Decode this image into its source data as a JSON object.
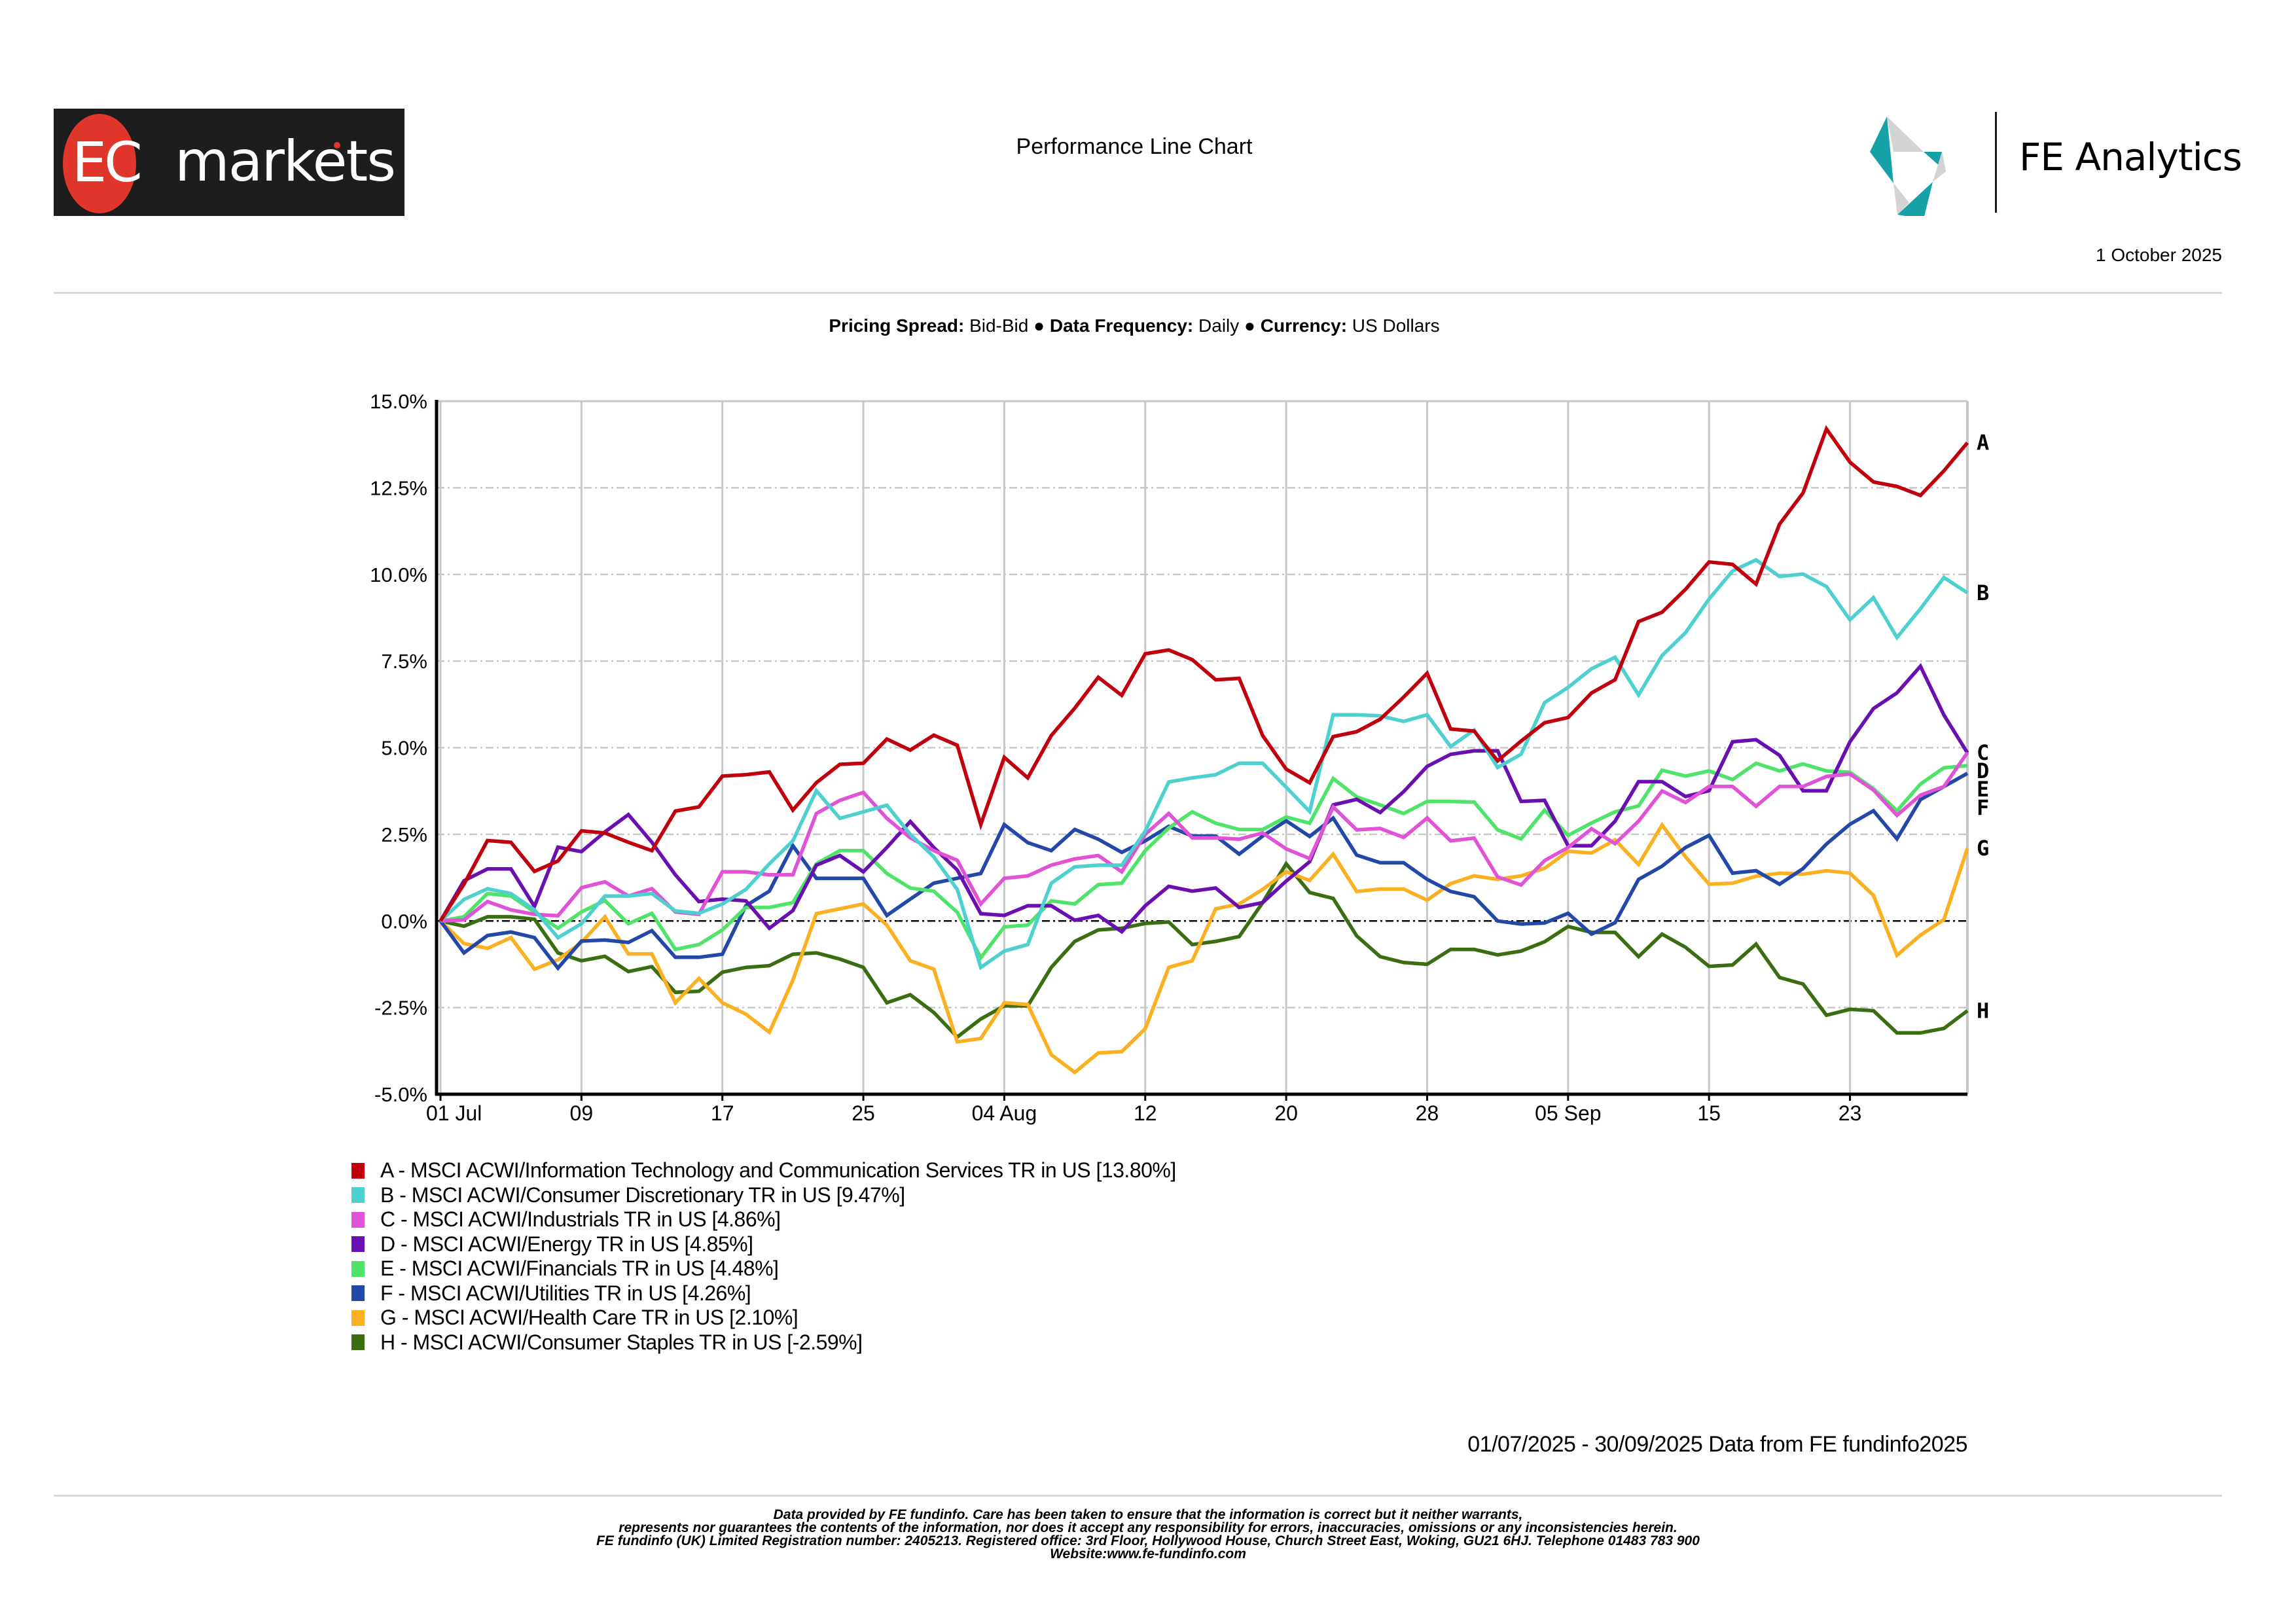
{
  "header": {
    "brand_left": {
      "ec": "EC",
      "markets": "markets"
    },
    "title": "Performance Line Chart",
    "brand_right": "FE Analytics",
    "report_date": "1 October 2025",
    "colors": {
      "ec_red": "#e0352b",
      "ec_bg": "#1d1d1d",
      "fe_teal": "#16a0a8",
      "fe_grey": "#d3d3d3"
    }
  },
  "subtitle": {
    "pricing_spread_label": "Pricing Spread:",
    "pricing_spread_value": " Bid-Bid ",
    "sep1": "● ",
    "data_frequency_label": "Data Frequency:",
    "data_frequency_value": " Daily ",
    "sep2": "● ",
    "currency_label": "Currency:",
    "currency_value": " US Dollars"
  },
  "chart_data": {
    "type": "line",
    "title": "Performance Line Chart",
    "xlabel": "",
    "ylabel": "",
    "ylim": [
      -5.0,
      15.0
    ],
    "y_ticks": [
      -5.0,
      -2.5,
      0.0,
      2.5,
      5.0,
      7.5,
      10.0,
      12.5,
      15.0
    ],
    "y_tick_labels": [
      "-5.0%",
      "-2.5%",
      "0.0%",
      "2.5%",
      "5.0%",
      "7.5%",
      "10.0%",
      "12.5%",
      "15.0%"
    ],
    "x_tick_labels": [
      "01 Jul",
      "09",
      "17",
      "25",
      "04 Aug",
      "12",
      "20",
      "28",
      "05 Sep",
      "15",
      "23"
    ],
    "x_tick_every_n_points": 6,
    "grid": true,
    "zero_line": true,
    "legend_position": "bottom-left",
    "x": [
      "2025-07-01",
      "2025-07-02",
      "2025-07-03",
      "2025-07-04",
      "2025-07-07",
      "2025-07-08",
      "2025-07-09",
      "2025-07-10",
      "2025-07-11",
      "2025-07-14",
      "2025-07-15",
      "2025-07-16",
      "2025-07-17",
      "2025-07-18",
      "2025-07-21",
      "2025-07-22",
      "2025-07-23",
      "2025-07-24",
      "2025-07-25",
      "2025-07-28",
      "2025-07-29",
      "2025-07-30",
      "2025-07-31",
      "2025-08-01",
      "2025-08-04",
      "2025-08-05",
      "2025-08-06",
      "2025-08-07",
      "2025-08-08",
      "2025-08-11",
      "2025-08-12",
      "2025-08-13",
      "2025-08-14",
      "2025-08-15",
      "2025-08-18",
      "2025-08-19",
      "2025-08-20",
      "2025-08-21",
      "2025-08-22",
      "2025-08-25",
      "2025-08-26",
      "2025-08-27",
      "2025-08-28",
      "2025-08-29",
      "2025-09-01",
      "2025-09-02",
      "2025-09-03",
      "2025-09-04",
      "2025-09-05",
      "2025-09-08",
      "2025-09-09",
      "2025-09-10",
      "2025-09-11",
      "2025-09-12",
      "2025-09-15",
      "2025-09-16",
      "2025-09-17",
      "2025-09-18",
      "2025-09-19",
      "2025-09-22",
      "2025-09-23",
      "2025-09-24",
      "2025-09-25",
      "2025-09-26",
      "2025-09-29",
      "2025-09-30"
    ],
    "series": [
      {
        "key": "A",
        "name": "A - MSCI ACWI/Information Technology and Communication Services TR in US [13.80%]",
        "color": "#c0000c",
        "final": 13.8,
        "values": [
          0,
          1.06,
          2.32,
          2.27,
          1.43,
          1.73,
          2.6,
          2.54,
          2.27,
          2.03,
          3.17,
          3.29,
          4.18,
          4.22,
          4.3,
          3.2,
          3.99,
          4.52,
          4.55,
          5.25,
          4.93,
          5.36,
          5.07,
          2.78,
          4.72,
          4.13,
          5.35,
          6.14,
          7.03,
          6.51,
          7.71,
          7.82,
          7.54,
          6.96,
          7.0,
          5.35,
          4.38,
          3.99,
          5.32,
          5.46,
          5.82,
          6.46,
          7.15,
          5.54,
          5.48,
          4.62,
          5.19,
          5.72,
          5.87,
          6.58,
          6.96,
          8.64,
          8.91,
          9.57,
          10.36,
          10.29,
          9.72,
          11.45,
          12.35,
          14.2,
          13.24,
          12.67,
          12.54,
          12.28,
          12.99,
          13.8
        ]
      },
      {
        "key": "B",
        "name": "B - MSCI ACWI/Consumer Discretionary TR in US [9.47%]",
        "color": "#4ecfd0",
        "final": 9.47,
        "values": [
          0,
          0.62,
          0.93,
          0.79,
          0.32,
          -0.48,
          -0.08,
          0.72,
          0.72,
          0.79,
          0.29,
          0.22,
          0.49,
          0.91,
          1.65,
          2.31,
          3.76,
          2.96,
          3.15,
          3.34,
          2.5,
          1.85,
          0.91,
          -1.34,
          -0.87,
          -0.68,
          1.09,
          1.56,
          1.61,
          1.61,
          2.59,
          4.01,
          4.13,
          4.22,
          4.55,
          4.55,
          3.86,
          3.16,
          5.95,
          5.95,
          5.92,
          5.76,
          5.95,
          5.03,
          5.51,
          4.43,
          4.81,
          6.3,
          6.74,
          7.28,
          7.61,
          6.52,
          7.66,
          8.32,
          9.29,
          10.1,
          10.42,
          9.94,
          10.01,
          9.65,
          8.69,
          9.33,
          8.18,
          9.01,
          9.91,
          9.47
        ]
      },
      {
        "key": "C",
        "name": "C - MSCI ACWI/Industrials TR in US [4.86%]",
        "color": "#e052d6",
        "final": 4.86,
        "values": [
          0,
          0.03,
          0.56,
          0.32,
          0.19,
          0.15,
          0.96,
          1.13,
          0.72,
          0.93,
          0.26,
          0.19,
          1.42,
          1.42,
          1.33,
          1.33,
          3.1,
          3.48,
          3.71,
          2.96,
          2.4,
          2.03,
          1.75,
          0.49,
          1.23,
          1.3,
          1.61,
          1.79,
          1.89,
          1.42,
          2.5,
          3.1,
          2.4,
          2.4,
          2.36,
          2.54,
          2.08,
          1.8,
          3.29,
          2.63,
          2.67,
          2.41,
          2.97,
          2.31,
          2.39,
          1.27,
          1.04,
          1.74,
          2.12,
          2.66,
          2.23,
          2.88,
          3.75,
          3.42,
          3.88,
          3.88,
          3.31,
          3.88,
          3.88,
          4.17,
          4.24,
          3.78,
          3.05,
          3.63,
          3.88,
          4.86
        ]
      },
      {
        "key": "D",
        "name": "D - MSCI ACWI/Energy TR in US [4.85%]",
        "color": "#6a0fb0",
        "final": 4.85,
        "values": [
          0,
          1.16,
          1.5,
          1.5,
          0.42,
          2.13,
          2.0,
          2.57,
          3.07,
          2.27,
          1.33,
          0.56,
          0.63,
          0.58,
          -0.21,
          0.3,
          1.61,
          1.89,
          1.42,
          2.12,
          2.87,
          2.12,
          1.47,
          0.21,
          0.16,
          0.44,
          0.44,
          0.02,
          0.16,
          -0.31,
          0.44,
          1.0,
          0.86,
          0.95,
          0.39,
          0.53,
          1.15,
          1.71,
          3.35,
          3.51,
          3.13,
          3.73,
          4.46,
          4.81,
          4.91,
          4.91,
          3.45,
          3.48,
          2.17,
          2.17,
          2.88,
          4.02,
          4.02,
          3.59,
          3.76,
          5.17,
          5.23,
          4.78,
          3.76,
          3.76,
          5.17,
          6.13,
          6.58,
          7.35,
          5.94,
          4.85
        ]
      },
      {
        "key": "E",
        "name": "E - MSCI ACWI/Financials TR in US [4.48%]",
        "color": "#4fe36a",
        "final": 4.48,
        "values": [
          0,
          0.12,
          0.79,
          0.72,
          0.26,
          -0.21,
          0.26,
          0.59,
          -0.08,
          0.22,
          -0.82,
          -0.68,
          -0.26,
          0.39,
          0.39,
          0.53,
          1.65,
          2.03,
          2.03,
          1.37,
          0.95,
          0.86,
          0.25,
          -1.06,
          -0.17,
          -0.12,
          0.58,
          0.49,
          1.05,
          1.09,
          2.03,
          2.68,
          3.15,
          2.82,
          2.64,
          2.64,
          3.0,
          2.82,
          4.11,
          3.58,
          3.35,
          3.1,
          3.45,
          3.45,
          3.43,
          2.63,
          2.37,
          3.2,
          2.47,
          2.83,
          3.15,
          3.32,
          4.35,
          4.18,
          4.33,
          4.08,
          4.55,
          4.33,
          4.53,
          4.33,
          4.29,
          3.82,
          3.18,
          3.95,
          4.42,
          4.48
        ]
      },
      {
        "key": "F",
        "name": "F - MSCI ACWI/Utilities TR in US [4.26%]",
        "color": "#2348a8",
        "final": 4.26,
        "values": [
          0,
          -0.92,
          -0.42,
          -0.32,
          -0.48,
          -1.36,
          -0.58,
          -0.55,
          -0.62,
          -0.28,
          -1.05,
          -1.05,
          -0.96,
          0.44,
          0.86,
          2.17,
          1.23,
          1.23,
          1.23,
          0.16,
          0.63,
          1.09,
          1.23,
          1.37,
          2.78,
          2.26,
          2.03,
          2.64,
          2.36,
          1.98,
          2.31,
          2.73,
          2.45,
          2.45,
          1.93,
          2.45,
          2.89,
          2.44,
          2.97,
          1.9,
          1.68,
          1.68,
          1.2,
          0.85,
          0.7,
          0.0,
          -0.09,
          -0.06,
          0.22,
          -0.38,
          -0.05,
          1.2,
          1.58,
          2.12,
          2.47,
          1.38,
          1.45,
          1.06,
          1.51,
          2.22,
          2.79,
          3.18,
          2.37,
          3.5,
          3.88,
          4.26
        ]
      },
      {
        "key": "G",
        "name": "G - MSCI ACWI/Health Care TR in US [2.10%]",
        "color": "#fbb022",
        "final": 2.1,
        "values": [
          0,
          -0.65,
          -0.79,
          -0.48,
          -1.39,
          -1.12,
          -0.62,
          0.12,
          -0.95,
          -0.95,
          -2.36,
          -1.66,
          -2.36,
          -2.69,
          -3.21,
          -1.71,
          0.21,
          0.35,
          0.49,
          -0.12,
          -1.15,
          -1.39,
          -3.49,
          -3.39,
          -2.36,
          -2.41,
          -3.86,
          -4.37,
          -3.81,
          -3.77,
          -3.11,
          -1.34,
          -1.15,
          0.35,
          0.49,
          0.91,
          1.42,
          1.17,
          1.93,
          0.85,
          0.92,
          0.92,
          0.6,
          1.08,
          1.3,
          1.2,
          1.3,
          1.52,
          2.01,
          1.96,
          2.34,
          1.63,
          2.77,
          1.85,
          1.06,
          1.09,
          1.29,
          1.38,
          1.35,
          1.45,
          1.38,
          0.74,
          -0.99,
          -0.41,
          0.04,
          2.1
        ]
      },
      {
        "key": "H",
        "name": "H - MSCI ACWI/Consumer Staples TR in US [-2.59%]",
        "color": "#3b6e12",
        "final": -2.59,
        "values": [
          0,
          -0.15,
          0.12,
          0.12,
          0.05,
          -0.92,
          -1.15,
          -1.02,
          -1.46,
          -1.32,
          -2.06,
          -2.03,
          -1.48,
          -1.34,
          -1.29,
          -0.96,
          -0.92,
          -1.1,
          -1.34,
          -2.36,
          -2.13,
          -2.64,
          -3.35,
          -2.83,
          -2.45,
          -2.45,
          -1.34,
          -0.59,
          -0.26,
          -0.21,
          -0.07,
          -0.03,
          -0.68,
          -0.59,
          -0.45,
          0.53,
          1.65,
          0.82,
          0.65,
          -0.43,
          -1.03,
          -1.2,
          -1.25,
          -0.82,
          -0.82,
          -0.98,
          -0.87,
          -0.6,
          -0.16,
          -0.33,
          -0.33,
          -1.03,
          -0.38,
          -0.76,
          -1.31,
          -1.27,
          -0.67,
          -1.63,
          -1.82,
          -2.72,
          -2.55,
          -2.59,
          -3.23,
          -3.23,
          -3.1,
          -2.59
        ]
      }
    ]
  },
  "date_range_note": "01/07/2025 - 30/09/2025 Data from FE fundinfo2025",
  "footer": {
    "lines": [
      "Data provided by FE fundinfo. Care has been taken to ensure that the information is correct but it neither warrants,",
      "represents nor guarantees the contents of the information, nor does it accept any responsibility for errors, inaccuracies, omissions or any inconsistencies herein.",
      "FE fundinfo (UK) Limited Registration number: 2405213. Registered office: 3rd Floor, Hollywood House, Church Street East, Woking, GU21 6HJ. Telephone 01483 783 900",
      "Website:www.fe-fundinfo.com"
    ]
  }
}
